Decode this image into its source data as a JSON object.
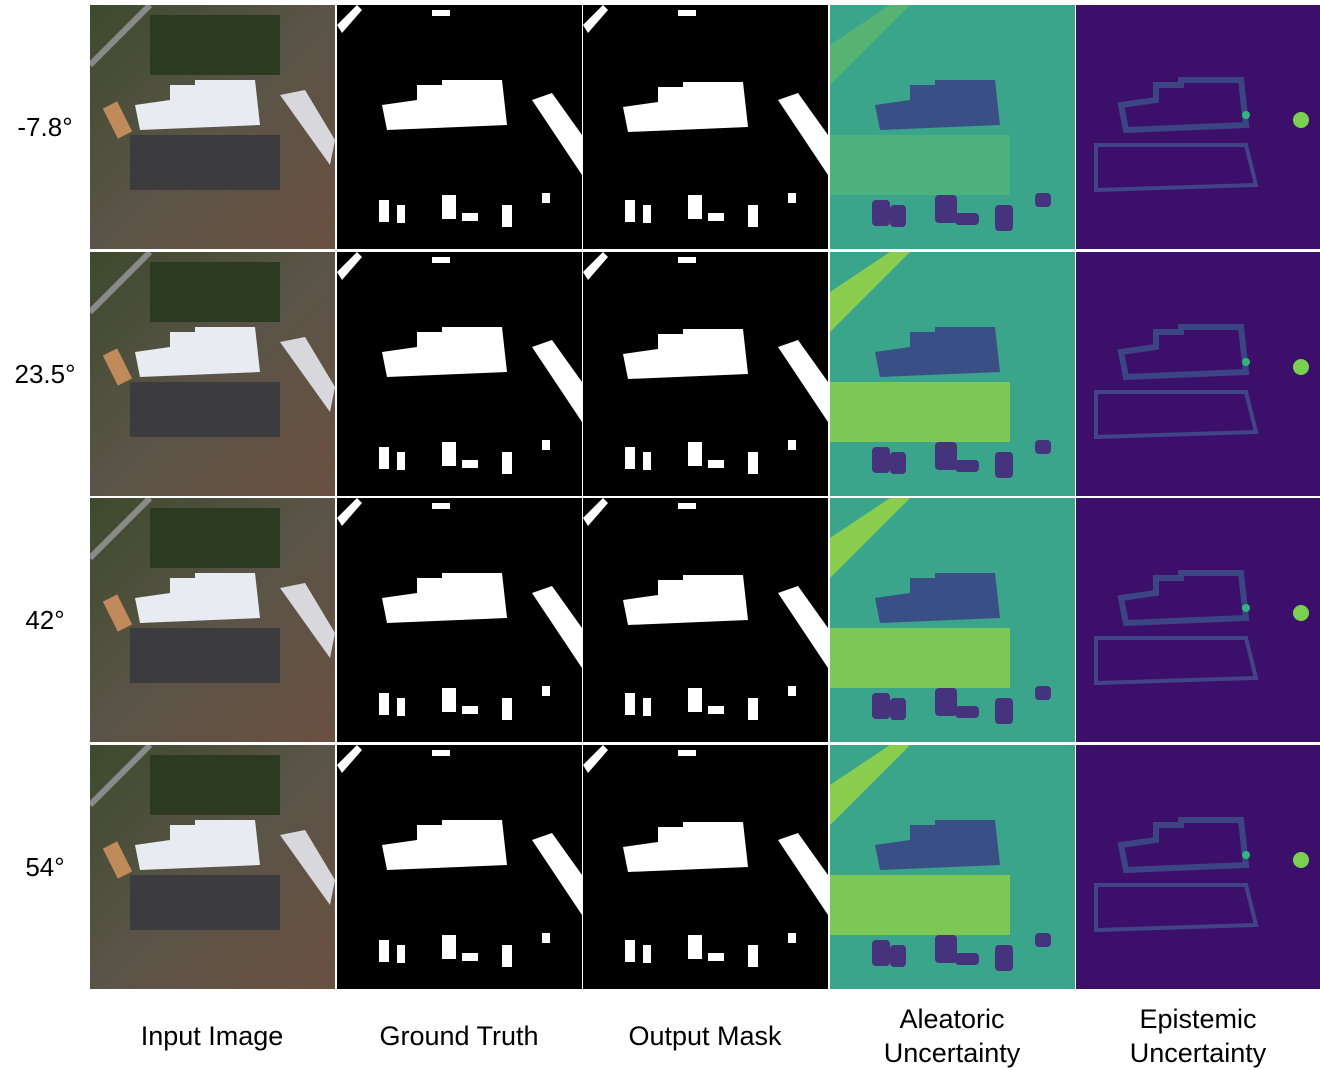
{
  "row_labels": [
    "-7.8°",
    "23.5°",
    "42°",
    "54°"
  ],
  "column_labels": [
    "Input Image",
    "Ground Truth",
    "Output Mask",
    "Aleatoric Uncertainty",
    "Epistemic Uncertainty"
  ]
}
